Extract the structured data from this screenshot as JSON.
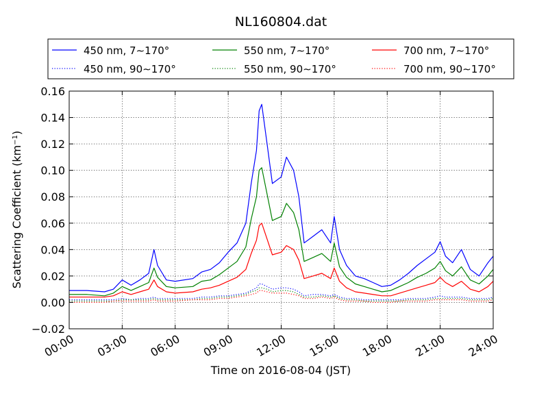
{
  "chart_data": {
    "type": "line",
    "title": "NL160804.dat",
    "xlabel": "Time on 2016-08-04 (JST)",
    "ylabel": "Scattering Coefficient (km",
    "ylabel_sup": "−1",
    "ylabel_end": ")",
    "xlim": [
      "00:00",
      "24:00"
    ],
    "ylim": [
      -0.02,
      0.16
    ],
    "grid": true,
    "legend_position": "top (above plot, 3 columns)",
    "xticks": [
      "00:00",
      "03:00",
      "06:00",
      "09:00",
      "12:00",
      "15:00",
      "18:00",
      "21:00",
      "24:00"
    ],
    "yticks": [
      "−0.02",
      "0.00",
      "0.02",
      "0.04",
      "0.06",
      "0.08",
      "0.10",
      "0.12",
      "0.14",
      "0.16"
    ],
    "x_hours": [
      0,
      1,
      2,
      2.5,
      3,
      3.5,
      4,
      4.5,
      4.8,
      5,
      5.5,
      6,
      7,
      7.5,
      8,
      8.5,
      9,
      9.5,
      10,
      10.3,
      10.6,
      10.75,
      10.9,
      11.2,
      11.5,
      12,
      12.3,
      12.7,
      13,
      13.3,
      13.8,
      14.3,
      14.8,
      15,
      15.3,
      15.7,
      16.2,
      16.7,
      17.2,
      17.7,
      18.2,
      18.7,
      19.2,
      19.7,
      20.2,
      20.7,
      21,
      21.3,
      21.7,
      22.2,
      22.7,
      23.2,
      23.7,
      24
    ],
    "series": [
      {
        "name": "450 nm, 7∼170°",
        "color": "#0000ff",
        "style": "solid",
        "values": [
          0.009,
          0.009,
          0.008,
          0.01,
          0.017,
          0.013,
          0.017,
          0.022,
          0.04,
          0.028,
          0.017,
          0.016,
          0.018,
          0.023,
          0.025,
          0.03,
          0.038,
          0.045,
          0.06,
          0.09,
          0.115,
          0.145,
          0.15,
          0.12,
          0.09,
          0.095,
          0.11,
          0.1,
          0.08,
          0.045,
          0.05,
          0.055,
          0.045,
          0.065,
          0.04,
          0.028,
          0.02,
          0.018,
          0.015,
          0.012,
          0.013,
          0.017,
          0.022,
          0.028,
          0.033,
          0.038,
          0.046,
          0.035,
          0.03,
          0.04,
          0.025,
          0.02,
          0.03,
          0.035
        ]
      },
      {
        "name": "450 nm, 90∼170°",
        "color": "#0000ff",
        "style": "dotted",
        "values": [
          0.002,
          0.002,
          0.002,
          0.002,
          0.003,
          0.002,
          0.003,
          0.003,
          0.004,
          0.003,
          0.003,
          0.003,
          0.003,
          0.004,
          0.004,
          0.005,
          0.005,
          0.006,
          0.007,
          0.009,
          0.011,
          0.014,
          0.014,
          0.012,
          0.01,
          0.011,
          0.011,
          0.01,
          0.008,
          0.005,
          0.006,
          0.006,
          0.005,
          0.006,
          0.004,
          0.003,
          0.003,
          0.002,
          0.002,
          0.002,
          0.002,
          0.002,
          0.003,
          0.003,
          0.003,
          0.004,
          0.005,
          0.004,
          0.004,
          0.004,
          0.003,
          0.003,
          0.003,
          0.004
        ]
      },
      {
        "name": "550 nm, 7∼170°",
        "color": "#008000",
        "style": "solid",
        "values": [
          0.006,
          0.006,
          0.005,
          0.007,
          0.012,
          0.009,
          0.012,
          0.015,
          0.026,
          0.019,
          0.012,
          0.011,
          0.012,
          0.016,
          0.017,
          0.021,
          0.026,
          0.031,
          0.042,
          0.063,
          0.08,
          0.1,
          0.102,
          0.082,
          0.062,
          0.065,
          0.075,
          0.068,
          0.055,
          0.031,
          0.034,
          0.037,
          0.031,
          0.045,
          0.027,
          0.019,
          0.014,
          0.012,
          0.01,
          0.008,
          0.009,
          0.012,
          0.015,
          0.019,
          0.022,
          0.026,
          0.031,
          0.024,
          0.02,
          0.027,
          0.017,
          0.014,
          0.02,
          0.025
        ]
      },
      {
        "name": "550 nm, 90∼170°",
        "color": "#008000",
        "style": "dotted",
        "values": [
          0.001,
          0.001,
          0.001,
          0.001,
          0.002,
          0.002,
          0.002,
          0.002,
          0.003,
          0.002,
          0.002,
          0.002,
          0.002,
          0.003,
          0.003,
          0.004,
          0.004,
          0.005,
          0.006,
          0.008,
          0.009,
          0.011,
          0.011,
          0.01,
          0.008,
          0.009,
          0.009,
          0.008,
          0.006,
          0.004,
          0.004,
          0.005,
          0.004,
          0.005,
          0.003,
          0.002,
          0.002,
          0.001,
          0.001,
          0.001,
          0.001,
          0.001,
          0.002,
          0.002,
          0.002,
          0.003,
          0.003,
          0.003,
          0.003,
          0.003,
          0.002,
          0.002,
          0.002,
          0.003
        ]
      },
      {
        "name": "700 nm, 7∼170°",
        "color": "#ff0000",
        "style": "solid",
        "values": [
          0.004,
          0.004,
          0.004,
          0.005,
          0.008,
          0.006,
          0.008,
          0.01,
          0.017,
          0.012,
          0.008,
          0.007,
          0.008,
          0.01,
          0.011,
          0.013,
          0.016,
          0.019,
          0.025,
          0.037,
          0.047,
          0.058,
          0.06,
          0.048,
          0.036,
          0.038,
          0.043,
          0.04,
          0.032,
          0.018,
          0.02,
          0.022,
          0.018,
          0.026,
          0.016,
          0.011,
          0.008,
          0.007,
          0.006,
          0.005,
          0.005,
          0.007,
          0.009,
          0.011,
          0.013,
          0.015,
          0.019,
          0.015,
          0.012,
          0.016,
          0.01,
          0.008,
          0.012,
          0.016
        ]
      },
      {
        "name": "700 nm, 90∼170°",
        "color": "#ff0000",
        "style": "dotted",
        "values": [
          0.0,
          0.0,
          0.0,
          0.001,
          0.001,
          0.001,
          0.001,
          0.001,
          0.002,
          0.001,
          0.001,
          0.001,
          0.002,
          0.002,
          0.002,
          0.003,
          0.003,
          0.004,
          0.005,
          0.006,
          0.007,
          0.009,
          0.009,
          0.008,
          0.007,
          0.007,
          0.007,
          0.006,
          0.005,
          0.003,
          0.003,
          0.004,
          0.003,
          0.004,
          0.002,
          0.001,
          0.001,
          0.001,
          0.0,
          0.0,
          0.0,
          0.001,
          0.001,
          0.001,
          0.001,
          0.002,
          0.002,
          0.002,
          0.002,
          0.002,
          0.001,
          0.001,
          0.001,
          0.002
        ]
      }
    ]
  }
}
